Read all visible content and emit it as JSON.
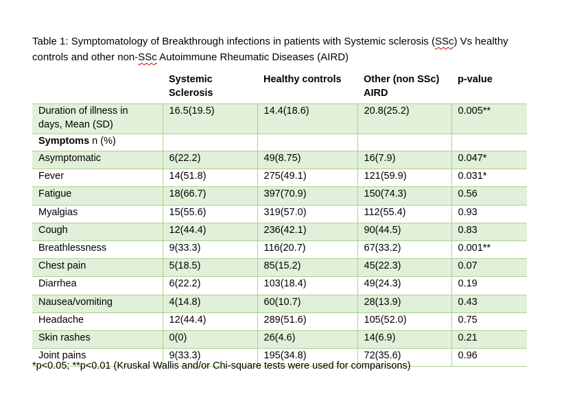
{
  "caption_parts": {
    "before": "Table 1: Symptomatology of Breakthrough infections in patients with Systemic sclerosis (",
    "ssc1": "SSc",
    "middle": ") Vs healthy controls and other non-",
    "ssc2": "SSc",
    "after": " Autoimmune Rheumatic Diseases (AIRD)"
  },
  "headers": {
    "blank": "",
    "ssc_line1": "Systemic",
    "ssc_line2": "Sclerosis",
    "hc": "Healthy controls",
    "other_line1": "Other (non SSc)",
    "other_line2": "AIRD",
    "pvalue": "p-value"
  },
  "duration": {
    "label_line1": "Duration of illness in",
    "label_line2": "days, Mean (SD)",
    "ssc": "16.5(19.5)",
    "hc": "14.4(18.6)",
    "other": "20.8(25.2)",
    "p": "0.005**"
  },
  "section": {
    "bold": "Symptoms",
    "rest": " n (%)"
  },
  "rows": [
    {
      "label": "Asymptomatic",
      "ssc": "6(22.2)",
      "hc": "49(8.75)",
      "other": "16(7.9)",
      "p": "0.047*"
    },
    {
      "label": "Fever",
      "ssc": "14(51.8)",
      "hc": "275(49.1)",
      "other": "121(59.9)",
      "p": "0.031*"
    },
    {
      "label": "Fatigue",
      "ssc": "18(66.7)",
      "hc": "397(70.9)",
      "other": "150(74.3)",
      "p": "0.56"
    },
    {
      "label": "Myalgias",
      "ssc": "15(55.6)",
      "hc": "319(57.0)",
      "other": "112(55.4)",
      "p": "0.93"
    },
    {
      "label": "Cough",
      "ssc": "12(44.4)",
      "hc": "236(42.1)",
      "other": "90(44.5)",
      "p": "0.83"
    },
    {
      "label": "Breathlessness",
      "ssc": "9(33.3)",
      "hc": "116(20.7)",
      "other": "67(33.2)",
      "p": "0.001**"
    },
    {
      "label": "Chest pain",
      "ssc": "5(18.5)",
      "hc": "85(15.2)",
      "other": "45(22.3)",
      "p": "0.07"
    },
    {
      "label": "Diarrhea",
      "ssc": "6(22.2)",
      "hc": "103(18.4)",
      "other": "49(24.3)",
      "p": "0.19"
    },
    {
      "label": "Nausea/vomiting",
      "ssc": "4(14.8)",
      "hc": "60(10.7)",
      "other": "28(13.9)",
      "p": "0.43"
    },
    {
      "label": "Headache",
      "ssc": "12(44.4)",
      "hc": "289(51.6)",
      "other": "105(52.0)",
      "p": "0.75"
    },
    {
      "label": "Skin rashes",
      "ssc": "0(0)",
      "hc": "26(4.6)",
      "other": "14(6.9)",
      "p": "0.21"
    },
    {
      "label": "Joint pains",
      "ssc": "9(33.3)",
      "hc": "195(34.8)",
      "other": "72(35.6)",
      "p": "0.96"
    }
  ],
  "footnote": "*p<0.05; **p<0.01 (Kruskal Wallis and/or Chi-square tests were used for comparisons)",
  "colors": {
    "shade": "#e2efd9",
    "border": "#a9d18e",
    "spellcheck": "#c00000"
  }
}
